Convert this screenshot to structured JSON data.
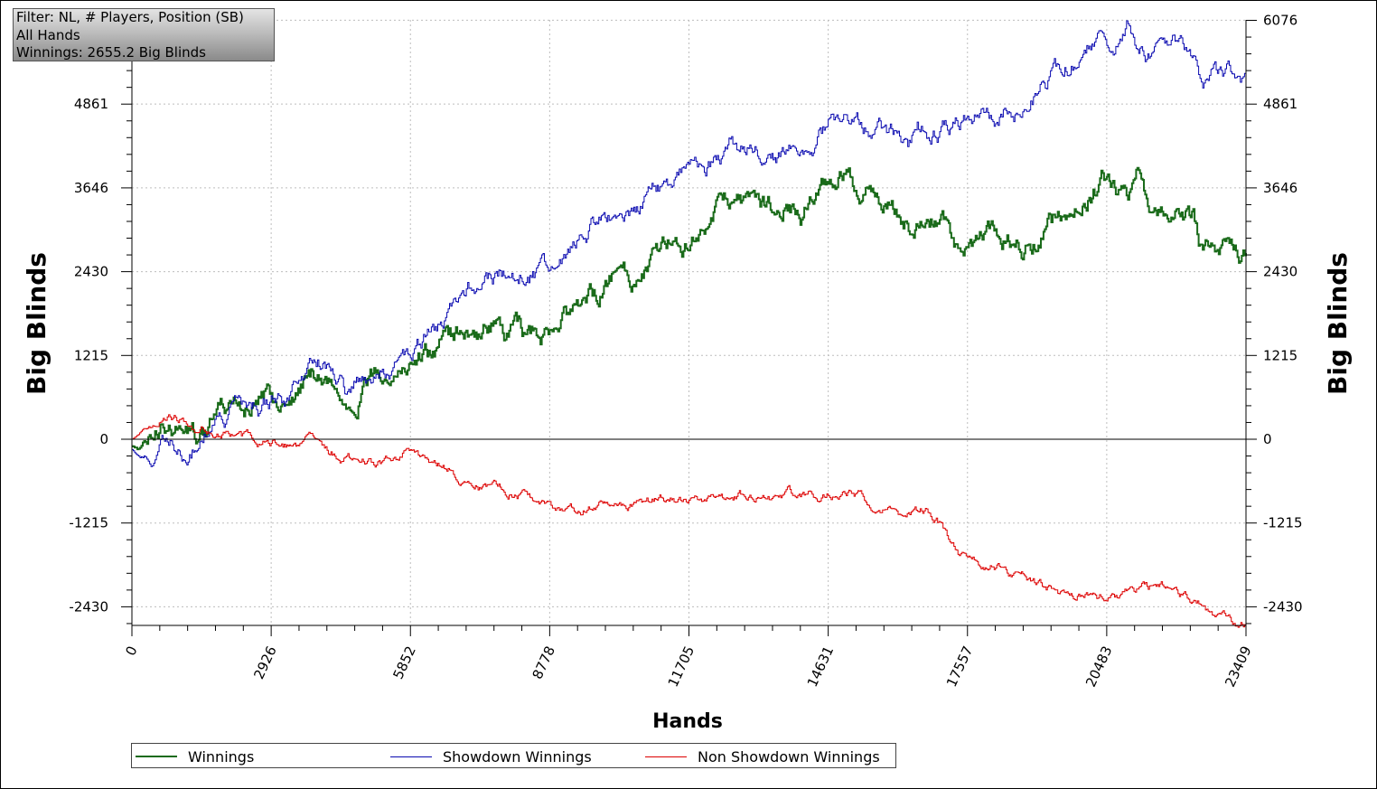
{
  "info": {
    "line1": "Filter: NL, # Players, Position (SB)",
    "line2": "All Hands",
    "line3": "Winnings: 2655.2 Big Blinds"
  },
  "legend": {
    "winnings": "Winnings",
    "showdown": "Showdown Winnings",
    "non_showdown": "Non Showdown Winnings"
  },
  "chart_data": {
    "type": "line",
    "xlabel": "Hands",
    "ylabel": "Big Blinds",
    "xlim": [
      0,
      23409
    ],
    "ylim": [
      -2700,
      6076
    ],
    "x_ticks": [
      0,
      2926,
      5852,
      8778,
      11705,
      14631,
      17557,
      20483,
      23409
    ],
    "x_tick_labels": [
      "0",
      "2926",
      "5852",
      "8778",
      "11705",
      "14631",
      "17557",
      "20483",
      "23409"
    ],
    "y_ticks": [
      -2430,
      -1215,
      0,
      1215,
      2430,
      3646,
      4861,
      6076
    ],
    "y_tick_labels": [
      "-2430",
      "-1215",
      "0",
      "1215",
      "2430",
      "3646",
      "4861",
      "6076"
    ],
    "grid": true,
    "legend_position": "bottom",
    "series": [
      {
        "name": "Winnings",
        "color": "#1a6b1a",
        "x": [
          0,
          200,
          400,
          600,
          800,
          1100,
          1400,
          1600,
          1750,
          2000,
          2300,
          2600,
          2926,
          3100,
          3300,
          3600,
          3900,
          4200,
          4500,
          4700,
          4900,
          5200,
          5500,
          5852,
          6100,
          6400,
          6700,
          7000,
          7300,
          7600,
          7900,
          8200,
          8500,
          8778,
          9100,
          9400,
          9700,
          10000,
          10300,
          10600,
          10900,
          11200,
          11500,
          11705,
          12000,
          12300,
          12600,
          12900,
          13200,
          13500,
          13800,
          14100,
          14400,
          14631,
          14900,
          15200,
          15500,
          15800,
          16100,
          16400,
          16700,
          17000,
          17300,
          17557,
          17900,
          18200,
          18500,
          18800,
          19100,
          19400,
          19700,
          20000,
          20200,
          20483,
          20700,
          20900,
          21100,
          21400,
          21700,
          22000,
          22300,
          22500,
          22700,
          23000,
          23200,
          23409
        ],
        "y": [
          -100,
          -150,
          0,
          180,
          200,
          100,
          80,
          150,
          300,
          420,
          500,
          520,
          550,
          420,
          600,
          850,
          1000,
          800,
          550,
          700,
          800,
          1000,
          1050,
          1100,
          1200,
          1300,
          1400,
          1600,
          1550,
          1700,
          1550,
          1500,
          1600,
          1480,
          1700,
          1800,
          2000,
          2300,
          2450,
          2400,
          2600,
          2900,
          3000,
          2950,
          3050,
          3300,
          3450,
          3400,
          3300,
          3350,
          3450,
          3300,
          3600,
          3800,
          3900,
          3700,
          3550,
          3450,
          3300,
          3100,
          3000,
          3150,
          2800,
          2900,
          2850,
          3050,
          3000,
          2850,
          2950,
          3150,
          3100,
          3400,
          3600,
          3800,
          3600,
          3500,
          3800,
          3350,
          3300,
          3300,
          3200,
          2700,
          2750,
          2700,
          2850,
          2700
        ]
      },
      {
        "name": "Showdown Winnings",
        "color": "#0a0ab0",
        "x": [
          0,
          200,
          400,
          600,
          800,
          1100,
          1400,
          1600,
          1800,
          2100,
          2400,
          2700,
          2926,
          3200,
          3500,
          3900,
          4200,
          4500,
          4800,
          5100,
          5400,
          5600,
          5852,
          6100,
          6400,
          6700,
          7000,
          7300,
          7600,
          7900,
          8200,
          8500,
          8778,
          9100,
          9400,
          9700,
          10000,
          10300,
          10600,
          10900,
          11200,
          11500,
          11705,
          12000,
          12300,
          12600,
          12900,
          13200,
          13500,
          13800,
          14100,
          14400,
          14631,
          14900,
          15200,
          15500,
          15800,
          16100,
          16300,
          16500,
          16700,
          17000,
          17300,
          17557,
          17900,
          18200,
          18500,
          18800,
          19000,
          19300,
          19600,
          19900,
          20200,
          20400,
          20483,
          20700,
          20900,
          21100,
          21400,
          21700,
          22000,
          22300,
          22500,
          22700,
          23000,
          23200,
          23409
        ],
        "y": [
          -150,
          -250,
          -150,
          -100,
          -150,
          -200,
          -100,
          100,
          250,
          400,
          500,
          450,
          550,
          500,
          800,
          1050,
          950,
          700,
          950,
          950,
          1100,
          1400,
          1300,
          1450,
          1600,
          1900,
          2100,
          2250,
          2350,
          2400,
          2450,
          2400,
          2500,
          2700,
          2900,
          3050,
          3200,
          3350,
          3400,
          3550,
          3650,
          3800,
          3800,
          3900,
          4100,
          4300,
          4250,
          4200,
          4100,
          4150,
          4250,
          4400,
          4550,
          4650,
          4600,
          4450,
          4500,
          4350,
          4100,
          4600,
          4450,
          4400,
          4550,
          4700,
          4800,
          4750,
          4850,
          4750,
          5000,
          5200,
          5400,
          5600,
          5750,
          6050,
          5950,
          5850,
          6000,
          5700,
          5500,
          5550,
          5650,
          5500,
          5200,
          5350,
          5300,
          5400,
          5300
        ]
      },
      {
        "name": "Non Showdown Winnings",
        "color": "#dd0000",
        "x": [
          0,
          300,
          600,
          800,
          1000,
          1200,
          1400,
          1700,
          2000,
          2300,
          2600,
          2926,
          3200,
          3500,
          3800,
          4100,
          4400,
          4700,
          5000,
          5300,
          5600,
          5852,
          6100,
          6400,
          6700,
          7000,
          7300,
          7600,
          7900,
          8200,
          8500,
          8778,
          9100,
          9400,
          9700,
          10000,
          10300,
          10600,
          10900,
          11200,
          11500,
          11705,
          12000,
          12300,
          12600,
          12900,
          13200,
          13500,
          13800,
          14100,
          14400,
          14631,
          14900,
          15200,
          15500,
          15800,
          16100,
          16400,
          16700,
          16900,
          17100,
          17300,
          17557,
          17900,
          18200,
          18500,
          18800,
          19100,
          19400,
          19700,
          20000,
          20300,
          20483,
          20700,
          21000,
          21300,
          21600,
          21900,
          22200,
          22500,
          22700,
          22900,
          23100,
          23300,
          23409
        ],
        "y": [
          0,
          150,
          300,
          350,
          300,
          250,
          150,
          100,
          50,
          0,
          -30,
          -50,
          -80,
          -60,
          -20,
          -150,
          -250,
          -300,
          -350,
          -350,
          -250,
          -150,
          -250,
          -350,
          -450,
          -550,
          -650,
          -700,
          -750,
          -800,
          -850,
          -950,
          -1050,
          -1050,
          -950,
          -950,
          -950,
          -900,
          -900,
          -850,
          -900,
          -850,
          -900,
          -900,
          -850,
          -800,
          -800,
          -850,
          -800,
          -800,
          -800,
          -750,
          -800,
          -800,
          -900,
          -1000,
          -1100,
          -1100,
          -1050,
          -1150,
          -1350,
          -1600,
          -1750,
          -1800,
          -1850,
          -1950,
          -2050,
          -2150,
          -2200,
          -2250,
          -2250,
          -2300,
          -2250,
          -2350,
          -2250,
          -2150,
          -2150,
          -2200,
          -2300,
          -2450,
          -2500,
          -2550,
          -2650,
          -2650,
          -2680
        ]
      }
    ]
  }
}
